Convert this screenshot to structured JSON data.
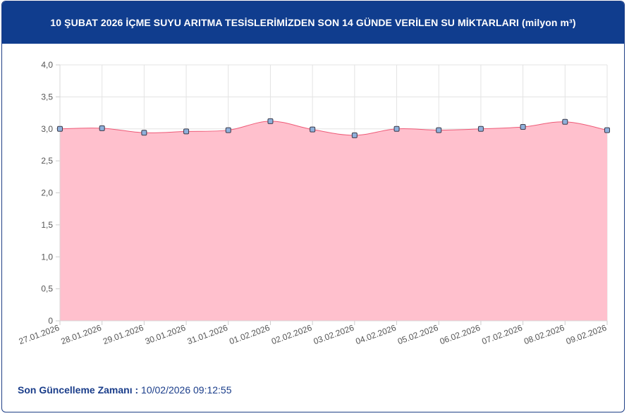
{
  "header": {
    "title": "10 ŞUBAT 2026 İÇME SUYU ARITMA TESİSLERİMİZDEN SON 14 GÜNDE VERİLEN SU MİKTARLARI (milyon m³)"
  },
  "footer": {
    "label": "Son Güncelleme Zamanı :",
    "value": "10/02/2026 09:12:55"
  },
  "colors": {
    "header_bg": "#103d8e",
    "area_fill": "#ffc0cd",
    "line": "#ee5a77",
    "marker_fill": "#8fb0db",
    "marker_stroke": "#3a3a4a"
  },
  "chart_data": {
    "type": "area",
    "categories": [
      "27.01.2026",
      "28.01.2026",
      "29.01.2026",
      "30.01.2026",
      "31.01.2026",
      "01.02.2026",
      "02.02.2026",
      "03.02.2026",
      "04.02.2026",
      "05.02.2026",
      "06.02.2026",
      "07.02.2026",
      "08.02.2026",
      "09.02.2026"
    ],
    "values": [
      3.0,
      3.01,
      2.94,
      2.96,
      2.98,
      3.12,
      2.99,
      2.9,
      3.0,
      2.98,
      3.0,
      3.03,
      3.11,
      2.98
    ],
    "y_ticks": [
      "0",
      "0,5",
      "1,0",
      "1,5",
      "2,0",
      "2,5",
      "3,0",
      "3,5",
      "4,0"
    ],
    "ylim": [
      0,
      4
    ],
    "grid": true
  }
}
